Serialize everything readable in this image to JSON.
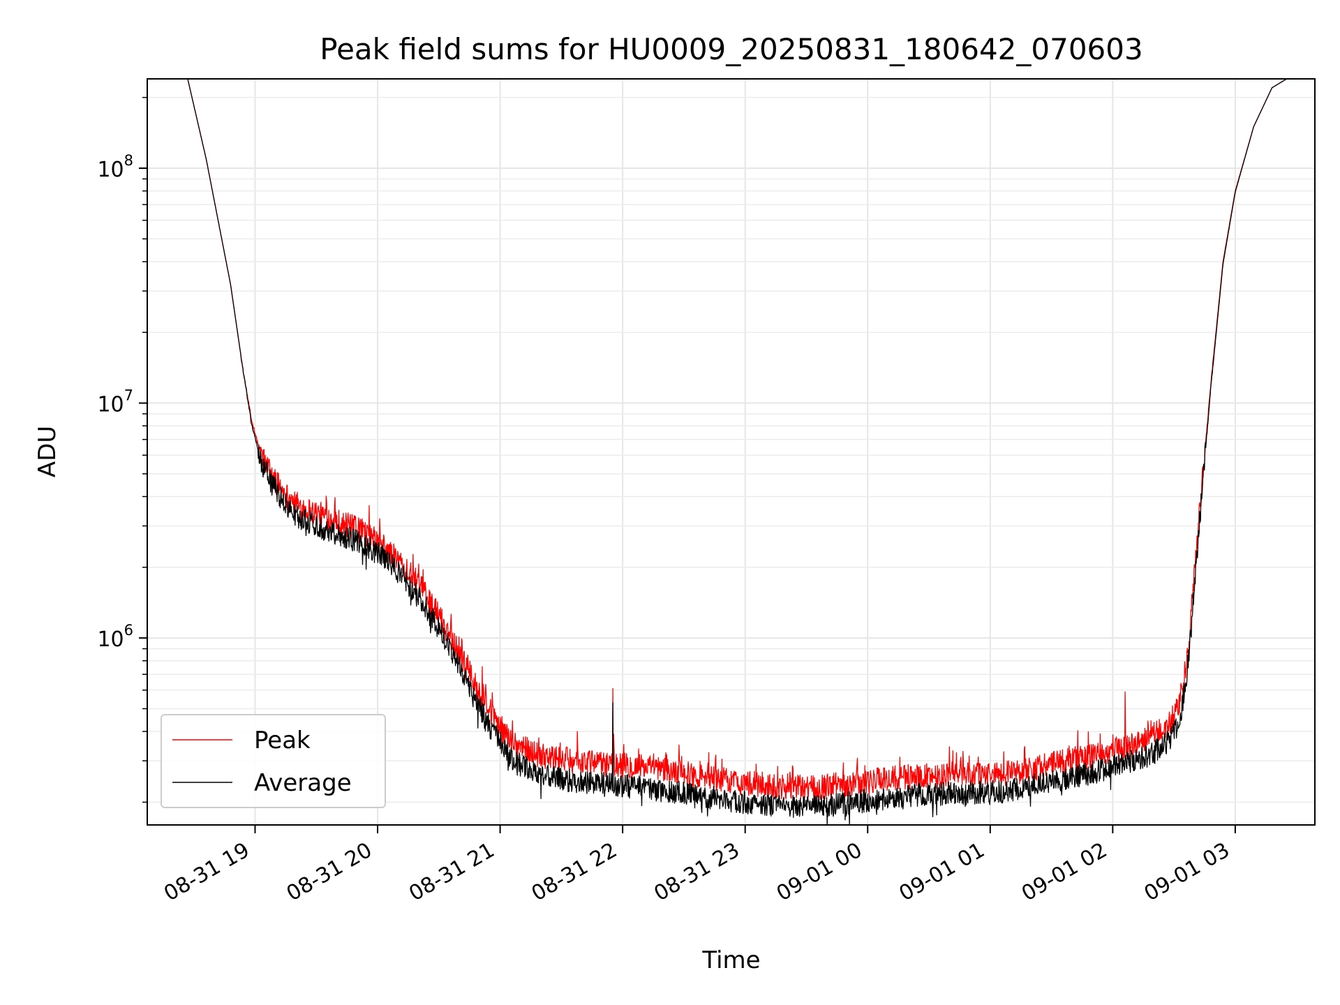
{
  "chart_data": {
    "type": "line",
    "title": "Peak field sums for HU0009_20250831_180642_070603",
    "xlabel": "Time",
    "ylabel": "ADU",
    "yscale": "log",
    "ylim": [
      160000,
      240000000
    ],
    "xlim_hours": [
      18.12,
      27.65
    ],
    "grid": true,
    "legend_position": "lower-left",
    "x_ticks": [
      {
        "hour": 19,
        "label": "08-31 19"
      },
      {
        "hour": 20,
        "label": "08-31 20"
      },
      {
        "hour": 21,
        "label": "08-31 21"
      },
      {
        "hour": 22,
        "label": "08-31 22"
      },
      {
        "hour": 23,
        "label": "08-31 23"
      },
      {
        "hour": 24,
        "label": "09-01 00"
      },
      {
        "hour": 25,
        "label": "09-01 01"
      },
      {
        "hour": 26,
        "label": "09-01 02"
      },
      {
        "hour": 27,
        "label": "09-01 03"
      }
    ],
    "y_ticks": [
      {
        "exp": 6,
        "base": "10",
        "sup": "6"
      },
      {
        "exp": 7,
        "base": "10",
        "sup": "7"
      },
      {
        "exp": 8,
        "base": "10",
        "sup": "8"
      }
    ],
    "series": [
      {
        "name": "Peak",
        "color": "#ff0000",
        "x_hours": [
          18.2,
          18.45,
          18.6,
          18.8,
          18.9,
          18.97,
          19.05,
          19.15,
          19.3,
          19.5,
          19.7,
          19.9,
          20.05,
          20.2,
          20.35,
          20.5,
          20.65,
          20.8,
          20.95,
          21.1,
          21.3,
          21.5,
          21.7,
          21.9,
          22.1,
          22.3,
          22.5,
          22.7,
          22.9,
          23.1,
          23.3,
          23.5,
          23.7,
          23.9,
          24.1,
          24.3,
          24.5,
          24.7,
          24.9,
          25.1,
          25.3,
          25.5,
          25.7,
          25.9,
          26.1,
          26.3,
          26.45,
          26.55,
          26.62,
          26.7,
          26.8,
          26.9,
          27.0,
          27.15,
          27.3,
          27.42,
          27.5
        ],
        "values": [
          240000000,
          240000000,
          110000000,
          32000000,
          14000000,
          8500000,
          6000000,
          4800000,
          3800000,
          3400000,
          3100000,
          2800000,
          2450000,
          2050000,
          1650000,
          1250000,
          900000,
          620000,
          450000,
          360000,
          320000,
          305000,
          295000,
          290000,
          285000,
          275000,
          265000,
          255000,
          245000,
          238000,
          232000,
          230000,
          235000,
          240000,
          248000,
          255000,
          258000,
          262000,
          262000,
          264000,
          275000,
          290000,
          305000,
          320000,
          345000,
          375000,
          420000,
          520000,
          900000,
          3000000,
          12000000,
          40000000,
          80000000,
          150000000,
          220000000,
          240000000,
          240000000
        ]
      },
      {
        "name": "Average",
        "color": "#000000",
        "x_hours": [
          18.2,
          18.45,
          18.6,
          18.8,
          18.9,
          18.97,
          19.05,
          19.15,
          19.3,
          19.5,
          19.7,
          19.9,
          20.05,
          20.2,
          20.35,
          20.5,
          20.65,
          20.8,
          20.95,
          21.1,
          21.3,
          21.5,
          21.7,
          21.9,
          22.1,
          22.3,
          22.5,
          22.7,
          22.9,
          23.1,
          23.3,
          23.5,
          23.7,
          23.9,
          24.1,
          24.3,
          24.5,
          24.7,
          24.9,
          25.1,
          25.3,
          25.5,
          25.7,
          25.9,
          26.1,
          26.3,
          26.45,
          26.55,
          26.62,
          26.7,
          26.8,
          26.9,
          27.0,
          27.15,
          27.3,
          27.42,
          27.5
        ],
        "values": [
          240000000,
          240000000,
          110000000,
          32000000,
          14000000,
          8200000,
          5600000,
          4400000,
          3400000,
          3000000,
          2750000,
          2500000,
          2200000,
          1850000,
          1450000,
          1100000,
          800000,
          540000,
          390000,
          300000,
          265000,
          250000,
          242000,
          238000,
          232000,
          225000,
          218000,
          210000,
          202000,
          196000,
          192000,
          190000,
          194000,
          200000,
          207000,
          213000,
          216000,
          218000,
          220000,
          222000,
          232000,
          245000,
          258000,
          272000,
          292000,
          318000,
          360000,
          450000,
          800000,
          2800000,
          11500000,
          39000000,
          79000000,
          150000000,
          220000000,
          240000000,
          240000000
        ]
      }
    ],
    "annotations": [
      {
        "series": "Peak",
        "hour": 21.63,
        "value": 400000
      },
      {
        "series": "Peak",
        "hour": 21.92,
        "value": 610000
      },
      {
        "series": "Average",
        "hour": 21.92,
        "value": 530000
      },
      {
        "series": "Peak",
        "hour": 26.1,
        "value": 590000
      }
    ]
  }
}
